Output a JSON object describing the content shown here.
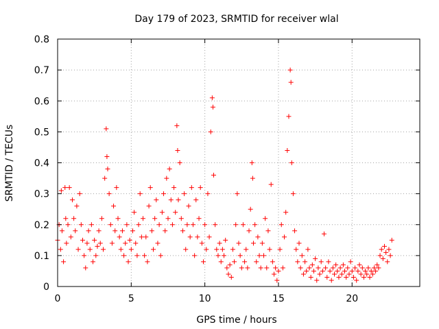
{
  "chart_data": {
    "type": "scatter",
    "title": "Day 179 of 2023, SRMTID for receiver wlal",
    "xlabel": "GPS time / hours",
    "ylabel": "SRMTID / TECUs",
    "xlim": [
      0,
      24.6
    ],
    "ylim": [
      0,
      0.8
    ],
    "xticks": [
      0,
      5,
      10,
      15,
      20
    ],
    "xtick_labels": [
      "0",
      "5",
      "10",
      "15",
      "20"
    ],
    "yticks": [
      0,
      0.1,
      0.2,
      0.3,
      0.4,
      0.5,
      0.6,
      0.7,
      0.8
    ],
    "ytick_labels": [
      "0",
      "0.1",
      "0.2",
      "0.3",
      "0.4",
      "0.5",
      "0.6",
      "0.7",
      "0.8"
    ],
    "grid": true,
    "marker": "plus",
    "color": "#ff0000",
    "series": [
      {
        "name": "SRMTID",
        "points": [
          [
            0.0,
            0.15
          ],
          [
            0.1,
            0.2
          ],
          [
            0.2,
            0.12
          ],
          [
            0.25,
            0.31
          ],
          [
            0.3,
            0.18
          ],
          [
            0.4,
            0.08
          ],
          [
            0.5,
            0.32
          ],
          [
            0.55,
            0.22
          ],
          [
            0.6,
            0.14
          ],
          [
            0.7,
            0.2
          ],
          [
            0.8,
            0.32
          ],
          [
            0.9,
            0.16
          ],
          [
            1.0,
            0.28
          ],
          [
            1.1,
            0.22
          ],
          [
            1.2,
            0.18
          ],
          [
            1.3,
            0.26
          ],
          [
            1.4,
            0.12
          ],
          [
            1.5,
            0.3
          ],
          [
            1.6,
            0.2
          ],
          [
            1.7,
            0.15
          ],
          [
            1.8,
            0.1
          ],
          [
            1.9,
            0.06
          ],
          [
            2.0,
            0.14
          ],
          [
            2.1,
            0.18
          ],
          [
            2.2,
            0.12
          ],
          [
            2.3,
            0.2
          ],
          [
            2.4,
            0.08
          ],
          [
            2.5,
            0.15
          ],
          [
            2.6,
            0.1
          ],
          [
            2.7,
            0.13
          ],
          [
            2.8,
            0.18
          ],
          [
            2.9,
            0.14
          ],
          [
            3.0,
            0.22
          ],
          [
            3.1,
            0.12
          ],
          [
            3.2,
            0.35
          ],
          [
            3.3,
            0.51
          ],
          [
            3.35,
            0.42
          ],
          [
            3.4,
            0.38
          ],
          [
            3.5,
            0.3
          ],
          [
            3.6,
            0.2
          ],
          [
            3.7,
            0.14
          ],
          [
            3.8,
            0.26
          ],
          [
            3.9,
            0.18
          ],
          [
            4.0,
            0.32
          ],
          [
            4.1,
            0.22
          ],
          [
            4.2,
            0.16
          ],
          [
            4.3,
            0.12
          ],
          [
            4.4,
            0.18
          ],
          [
            4.5,
            0.1
          ],
          [
            4.6,
            0.14
          ],
          [
            4.7,
            0.2
          ],
          [
            4.8,
            0.08
          ],
          [
            4.9,
            0.15
          ],
          [
            5.0,
            0.12
          ],
          [
            5.1,
            0.18
          ],
          [
            5.2,
            0.24
          ],
          [
            5.3,
            0.14
          ],
          [
            5.4,
            0.1
          ],
          [
            5.5,
            0.2
          ],
          [
            5.6,
            0.3
          ],
          [
            5.7,
            0.16
          ],
          [
            5.8,
            0.22
          ],
          [
            5.9,
            0.1
          ],
          [
            6.0,
            0.16
          ],
          [
            6.1,
            0.08
          ],
          [
            6.2,
            0.26
          ],
          [
            6.3,
            0.32
          ],
          [
            6.4,
            0.18
          ],
          [
            6.5,
            0.12
          ],
          [
            6.6,
            0.22
          ],
          [
            6.7,
            0.28
          ],
          [
            6.8,
            0.14
          ],
          [
            6.9,
            0.2
          ],
          [
            7.0,
            0.1
          ],
          [
            7.1,
            0.24
          ],
          [
            7.2,
            0.3
          ],
          [
            7.3,
            0.18
          ],
          [
            7.4,
            0.35
          ],
          [
            7.5,
            0.22
          ],
          [
            7.6,
            0.38
          ],
          [
            7.7,
            0.28
          ],
          [
            7.8,
            0.2
          ],
          [
            7.9,
            0.32
          ],
          [
            8.0,
            0.24
          ],
          [
            8.1,
            0.52
          ],
          [
            8.15,
            0.44
          ],
          [
            8.2,
            0.28
          ],
          [
            8.3,
            0.4
          ],
          [
            8.4,
            0.22
          ],
          [
            8.5,
            0.18
          ],
          [
            8.6,
            0.3
          ],
          [
            8.7,
            0.12
          ],
          [
            8.8,
            0.2
          ],
          [
            8.9,
            0.26
          ],
          [
            9.0,
            0.16
          ],
          [
            9.1,
            0.32
          ],
          [
            9.2,
            0.2
          ],
          [
            9.3,
            0.1
          ],
          [
            9.4,
            0.28
          ],
          [
            9.5,
            0.16
          ],
          [
            9.6,
            0.22
          ],
          [
            9.7,
            0.32
          ],
          [
            9.8,
            0.14
          ],
          [
            9.9,
            0.08
          ],
          [
            10.0,
            0.2
          ],
          [
            10.1,
            0.12
          ],
          [
            10.2,
            0.3
          ],
          [
            10.3,
            0.16
          ],
          [
            10.4,
            0.5
          ],
          [
            10.5,
            0.61
          ],
          [
            10.55,
            0.58
          ],
          [
            10.6,
            0.36
          ],
          [
            10.7,
            0.2
          ],
          [
            10.8,
            0.12
          ],
          [
            10.9,
            0.1
          ],
          [
            11.0,
            0.14
          ],
          [
            11.1,
            0.08
          ],
          [
            11.2,
            0.12
          ],
          [
            11.3,
            0.1
          ],
          [
            11.4,
            0.15
          ],
          [
            11.5,
            0.06
          ],
          [
            11.6,
            0.04
          ],
          [
            11.7,
            0.07
          ],
          [
            11.8,
            0.03
          ],
          [
            11.9,
            0.12
          ],
          [
            12.0,
            0.08
          ],
          [
            12.1,
            0.2
          ],
          [
            12.2,
            0.3
          ],
          [
            12.3,
            0.14
          ],
          [
            12.4,
            0.1
          ],
          [
            12.5,
            0.06
          ],
          [
            12.6,
            0.2
          ],
          [
            12.7,
            0.08
          ],
          [
            12.8,
            0.12
          ],
          [
            12.9,
            0.06
          ],
          [
            13.0,
            0.18
          ],
          [
            13.1,
            0.25
          ],
          [
            13.2,
            0.4
          ],
          [
            13.25,
            0.35
          ],
          [
            13.3,
            0.14
          ],
          [
            13.4,
            0.2
          ],
          [
            13.5,
            0.08
          ],
          [
            13.6,
            0.16
          ],
          [
            13.7,
            0.1
          ],
          [
            13.8,
            0.06
          ],
          [
            13.9,
            0.14
          ],
          [
            14.0,
            0.1
          ],
          [
            14.1,
            0.22
          ],
          [
            14.2,
            0.06
          ],
          [
            14.3,
            0.18
          ],
          [
            14.4,
            0.12
          ],
          [
            14.5,
            0.33
          ],
          [
            14.6,
            0.08
          ],
          [
            14.7,
            0.04
          ],
          [
            14.8,
            0.06
          ],
          [
            14.9,
            0.02
          ],
          [
            15.0,
            0.05
          ],
          [
            15.1,
            0.12
          ],
          [
            15.2,
            0.2
          ],
          [
            15.3,
            0.06
          ],
          [
            15.4,
            0.16
          ],
          [
            15.5,
            0.24
          ],
          [
            15.6,
            0.44
          ],
          [
            15.7,
            0.55
          ],
          [
            15.8,
            0.7
          ],
          [
            15.85,
            0.66
          ],
          [
            15.9,
            0.4
          ],
          [
            16.0,
            0.3
          ],
          [
            16.1,
            0.18
          ],
          [
            16.2,
            0.12
          ],
          [
            16.3,
            0.08
          ],
          [
            16.4,
            0.14
          ],
          [
            16.5,
            0.06
          ],
          [
            16.6,
            0.1
          ],
          [
            16.7,
            0.04
          ],
          [
            16.8,
            0.08
          ],
          [
            16.9,
            0.05
          ],
          [
            17.0,
            0.12
          ],
          [
            17.1,
            0.06
          ],
          [
            17.2,
            0.03
          ],
          [
            17.3,
            0.07
          ],
          [
            17.4,
            0.05
          ],
          [
            17.5,
            0.09
          ],
          [
            17.6,
            0.02
          ],
          [
            17.7,
            0.06
          ],
          [
            17.8,
            0.04
          ],
          [
            17.9,
            0.08
          ],
          [
            18.0,
            0.05
          ],
          [
            18.1,
            0.17
          ],
          [
            18.2,
            0.06
          ],
          [
            18.3,
            0.03
          ],
          [
            18.4,
            0.08
          ],
          [
            18.5,
            0.05
          ],
          [
            18.6,
            0.02
          ],
          [
            18.7,
            0.06
          ],
          [
            18.8,
            0.04
          ],
          [
            18.9,
            0.07
          ],
          [
            19.0,
            0.05
          ],
          [
            19.1,
            0.03
          ],
          [
            19.2,
            0.06
          ],
          [
            19.3,
            0.04
          ],
          [
            19.4,
            0.07
          ],
          [
            19.5,
            0.05
          ],
          [
            19.6,
            0.03
          ],
          [
            19.7,
            0.06
          ],
          [
            19.8,
            0.04
          ],
          [
            19.9,
            0.08
          ],
          [
            20.0,
            0.05
          ],
          [
            20.1,
            0.03
          ],
          [
            20.2,
            0.06
          ],
          [
            20.3,
            0.02
          ],
          [
            20.4,
            0.05
          ],
          [
            20.5,
            0.07
          ],
          [
            20.6,
            0.04
          ],
          [
            20.7,
            0.06
          ],
          [
            20.8,
            0.03
          ],
          [
            20.9,
            0.05
          ],
          [
            21.0,
            0.04
          ],
          [
            21.1,
            0.06
          ],
          [
            21.2,
            0.03
          ],
          [
            21.3,
            0.05
          ],
          [
            21.4,
            0.04
          ],
          [
            21.5,
            0.06
          ],
          [
            21.6,
            0.05
          ],
          [
            21.7,
            0.07
          ],
          [
            21.8,
            0.06
          ],
          [
            21.9,
            0.1
          ],
          [
            22.0,
            0.12
          ],
          [
            22.1,
            0.09
          ],
          [
            22.2,
            0.13
          ],
          [
            22.3,
            0.11
          ],
          [
            22.4,
            0.08
          ],
          [
            22.5,
            0.12
          ],
          [
            22.6,
            0.1
          ],
          [
            22.7,
            0.15
          ]
        ]
      }
    ]
  }
}
